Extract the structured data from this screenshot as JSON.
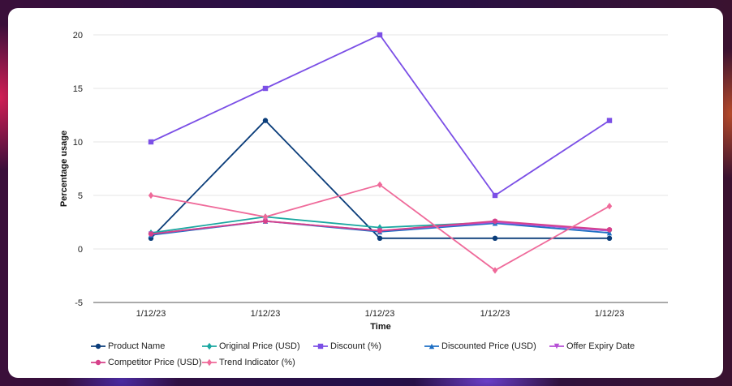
{
  "chart_data": {
    "type": "line",
    "xlabel": "Time",
    "ylabel": "Percentage usage",
    "categories": [
      "1/12/23",
      "1/12/23",
      "1/12/23",
      "1/12/23",
      "1/12/23"
    ],
    "ylim": [
      -5,
      20
    ],
    "yticks": [
      -5,
      0,
      5,
      10,
      15,
      20
    ],
    "grid": true,
    "legend_position": "bottom",
    "series": [
      {
        "name": "Product Name",
        "color": "#0b3d7a",
        "marker": "circle",
        "values": [
          1,
          12,
          1,
          1,
          1
        ]
      },
      {
        "name": "Original Price (USD)",
        "color": "#1aa7a0",
        "marker": "diamond",
        "values": [
          1.5,
          3,
          2,
          2.5,
          1.7
        ]
      },
      {
        "name": "Discount (%)",
        "color": "#7b4fe6",
        "marker": "square",
        "values": [
          10,
          15,
          20,
          5,
          12
        ]
      },
      {
        "name": "Discounted Price (USD)",
        "color": "#1e6fc4",
        "marker": "triangle-up",
        "values": [
          1.3,
          2.6,
          1.6,
          2.4,
          1.5
        ]
      },
      {
        "name": "Offer Expiry Date",
        "color": "#b64fd6",
        "marker": "triangle-down",
        "values": [
          1.4,
          2.6,
          1.7,
          2.5,
          1.7
        ]
      },
      {
        "name": "Competitor Price (USD)",
        "color": "#d6418a",
        "marker": "circle",
        "values": [
          1.4,
          2.6,
          1.7,
          2.6,
          1.8
        ]
      },
      {
        "name": "Trend Indicator (%)",
        "color": "#ef6a9a",
        "marker": "diamond",
        "values": [
          5,
          3,
          6,
          -2,
          4
        ]
      }
    ]
  }
}
